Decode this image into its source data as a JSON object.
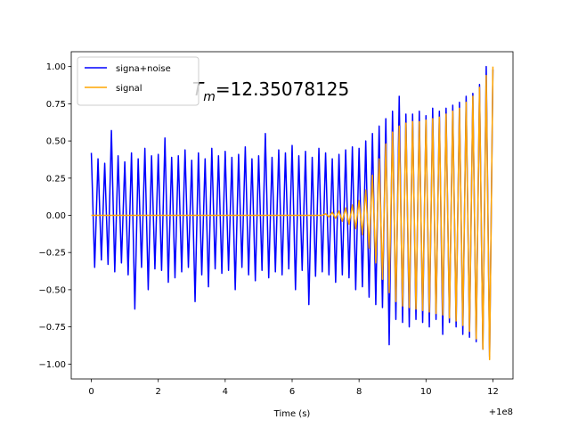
{
  "chart_data": {
    "type": "line",
    "xlabel": "Time (s)",
    "x_offset_label": "+1e8",
    "annotation": {
      "base": "T",
      "subscript": "m",
      "text": "=12.35078125"
    },
    "legend": "upper left",
    "x": [
      0,
      0.1,
      0.2,
      0.3,
      0.4,
      0.5,
      0.6,
      0.7,
      0.8,
      0.9,
      1,
      1.1,
      1.2,
      1.3,
      1.4,
      1.5,
      1.6,
      1.7,
      1.8,
      1.9,
      2,
      2.1,
      2.2,
      2.3,
      2.4,
      2.5,
      2.6,
      2.7,
      2.8,
      2.9,
      3,
      3.1,
      3.2,
      3.3,
      3.4,
      3.5,
      3.6,
      3.7,
      3.8,
      3.9,
      4,
      4.1,
      4.2,
      4.3,
      4.4,
      4.5,
      4.6,
      4.7,
      4.8,
      4.9,
      5,
      5.1,
      5.2,
      5.3,
      5.4,
      5.5,
      5.6,
      5.7,
      5.8,
      5.9,
      6,
      6.1,
      6.2,
      6.3,
      6.4,
      6.5,
      6.6,
      6.7,
      6.8,
      6.9,
      7,
      7.1,
      7.2,
      7.3,
      7.4,
      7.5,
      7.6,
      7.7,
      7.8,
      7.9,
      8,
      8.1,
      8.2,
      8.3,
      8.4,
      8.5,
      8.6,
      8.7,
      8.8,
      8.9,
      9,
      9.1,
      9.2,
      9.3,
      9.4,
      9.5,
      9.6,
      9.7,
      9.8,
      9.9,
      10,
      10.1,
      10.2,
      10.3,
      10.4,
      10.5,
      10.6,
      10.7,
      10.8,
      10.9,
      11,
      11.1,
      11.2,
      11.3,
      11.4,
      11.5,
      11.6,
      11.7,
      11.8,
      11.9,
      12
    ],
    "series": [
      {
        "name": "signa+noise",
        "color": "#0000ff",
        "values": [
          0.42,
          -0.35,
          0.38,
          -0.3,
          0.35,
          -0.33,
          0.57,
          -0.38,
          0.4,
          -0.32,
          0.36,
          -0.4,
          0.42,
          -0.63,
          0.38,
          -0.35,
          0.45,
          -0.5,
          0.4,
          -0.36,
          0.41,
          -0.37,
          0.52,
          -0.45,
          0.39,
          -0.42,
          0.4,
          -0.38,
          0.44,
          -0.35,
          0.37,
          -0.58,
          0.42,
          -0.4,
          0.38,
          -0.48,
          0.45,
          -0.36,
          0.4,
          -0.39,
          0.43,
          -0.37,
          0.39,
          -0.5,
          0.41,
          -0.35,
          0.46,
          -0.4,
          0.38,
          -0.44,
          0.4,
          -0.37,
          0.55,
          -0.42,
          0.39,
          -0.38,
          0.44,
          -0.4,
          0.42,
          -0.36,
          0.47,
          -0.5,
          0.4,
          -0.37,
          0.43,
          -0.6,
          0.39,
          -0.41,
          0.45,
          -0.38,
          0.42,
          -0.4,
          0.38,
          -0.45,
          0.41,
          -0.4,
          0.44,
          -0.42,
          0.46,
          -0.5,
          0.45,
          -0.48,
          0.5,
          -0.55,
          0.55,
          -0.6,
          0.6,
          -0.62,
          0.65,
          -0.87,
          0.7,
          -0.7,
          0.8,
          -0.72,
          0.68,
          -0.75,
          0.68,
          -0.7,
          0.7,
          -0.72,
          0.67,
          -0.75,
          0.72,
          -0.7,
          0.7,
          -0.8,
          0.72,
          -0.72,
          0.74,
          -0.75,
          0.76,
          -0.8,
          0.8,
          -0.82,
          0.82,
          -0.85,
          0.88,
          -0.9,
          1.0,
          -0.95,
          0.98
        ]
      },
      {
        "name": "signal",
        "color": "#ffa500",
        "values": [
          0,
          0,
          0,
          0,
          0,
          0,
          0,
          0,
          0,
          0,
          0,
          0,
          0,
          0,
          0,
          0,
          0,
          0,
          0,
          0,
          0,
          0,
          0,
          0,
          0,
          0,
          0,
          0,
          0,
          0,
          0,
          0,
          0,
          0,
          0,
          0,
          0,
          0,
          0,
          0,
          0,
          0,
          0,
          0,
          0,
          0,
          0,
          0,
          0,
          0,
          0,
          0,
          0,
          0,
          0,
          0,
          0,
          0,
          0,
          0,
          0,
          0,
          0,
          0,
          0,
          0,
          0,
          0,
          0,
          0,
          0.01,
          -0.01,
          0.02,
          -0.02,
          0.03,
          -0.04,
          0.05,
          -0.06,
          0.07,
          -0.09,
          0.1,
          -0.13,
          0.17,
          -0.22,
          0.27,
          -0.32,
          0.38,
          -0.43,
          0.48,
          -0.52,
          0.56,
          -0.58,
          0.6,
          -0.61,
          0.62,
          -0.62,
          0.63,
          -0.63,
          0.63,
          -0.64,
          0.64,
          -0.65,
          0.65,
          -0.66,
          0.66,
          -0.67,
          0.68,
          -0.69,
          0.7,
          -0.71,
          0.72,
          -0.74,
          0.76,
          -0.78,
          0.8,
          -0.83,
          0.86,
          -0.9,
          0.94,
          -0.97,
          1.0
        ]
      }
    ],
    "xlim": [
      -0.6,
      12.6
    ],
    "xticks": [
      0,
      2,
      4,
      6,
      8,
      10,
      12
    ],
    "ylim": [
      -1.1,
      1.1
    ],
    "yticks": [
      {
        "value": -1,
        "label": "−1.00"
      },
      {
        "value": -0.75,
        "label": "−0.75"
      },
      {
        "value": -0.5,
        "label": "−0.50"
      },
      {
        "value": -0.25,
        "label": "−0.25"
      },
      {
        "value": 0,
        "label": "0.00"
      },
      {
        "value": 0.25,
        "label": "0.25"
      },
      {
        "value": 0.5,
        "label": "0.50"
      },
      {
        "value": 0.75,
        "label": "0.75"
      },
      {
        "value": 1,
        "label": "1.00"
      }
    ]
  }
}
